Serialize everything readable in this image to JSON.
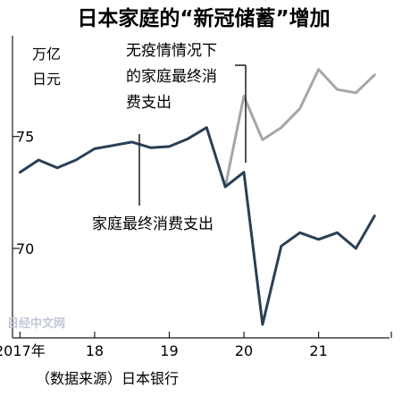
{
  "chart_data": {
    "type": "line",
    "title": "日本家庭的“新冠储蓄”增加",
    "unit_label": [
      "万亿",
      "日元"
    ],
    "ylim": [
      66,
      79.5
    ],
    "y_ticks": [
      70,
      75
    ],
    "x_ticks": [
      {
        "label": "2017年",
        "x": 0
      },
      {
        "label": "18",
        "x": 4
      },
      {
        "label": "19",
        "x": 8
      },
      {
        "label": "20",
        "x": 12
      },
      {
        "label": "21",
        "x": 16
      }
    ],
    "xlim": [
      -0.4,
      19.8
    ],
    "series": [
      {
        "name": "家庭最终消费支出",
        "color": "#2b3f55",
        "values": [
          {
            "x": 0,
            "y": 73.4
          },
          {
            "x": 1,
            "y": 73.95
          },
          {
            "x": 2,
            "y": 73.6
          },
          {
            "x": 3,
            "y": 73.95
          },
          {
            "x": 4,
            "y": 74.45
          },
          {
            "x": 5,
            "y": 74.6
          },
          {
            "x": 6,
            "y": 74.75
          },
          {
            "x": 7,
            "y": 74.5
          },
          {
            "x": 8,
            "y": 74.55
          },
          {
            "x": 9,
            "y": 74.9
          },
          {
            "x": 10,
            "y": 75.4
          },
          {
            "x": 11,
            "y": 72.75
          },
          {
            "x": 12,
            "y": 73.4
          },
          {
            "x": 13,
            "y": 66.6
          },
          {
            "x": 14,
            "y": 70.1
          },
          {
            "x": 15,
            "y": 70.7
          },
          {
            "x": 16,
            "y": 70.4
          },
          {
            "x": 17,
            "y": 70.7
          },
          {
            "x": 18,
            "y": 70.0
          },
          {
            "x": 19,
            "y": 71.45
          }
        ]
      },
      {
        "name": "无疫情情况下的家庭最终消费支出",
        "color": "#a6a6a6",
        "values": [
          {
            "x": 11,
            "y": 72.75
          },
          {
            "x": 12,
            "y": 76.8
          },
          {
            "x": 13,
            "y": 74.85
          },
          {
            "x": 14,
            "y": 75.4
          },
          {
            "x": 15,
            "y": 76.25
          },
          {
            "x": 16,
            "y": 78.0
          },
          {
            "x": 17,
            "y": 77.1
          },
          {
            "x": 18,
            "y": 76.95
          },
          {
            "x": 19,
            "y": 77.75
          }
        ]
      }
    ],
    "annotations": {
      "actual": [
        "家庭最终消费支出"
      ],
      "counterfactual": [
        "无疫情情况下",
        "的家庭最终消",
        "费支出"
      ]
    },
    "source": "（数据来源）日本银行",
    "watermark": "日经中文网"
  }
}
